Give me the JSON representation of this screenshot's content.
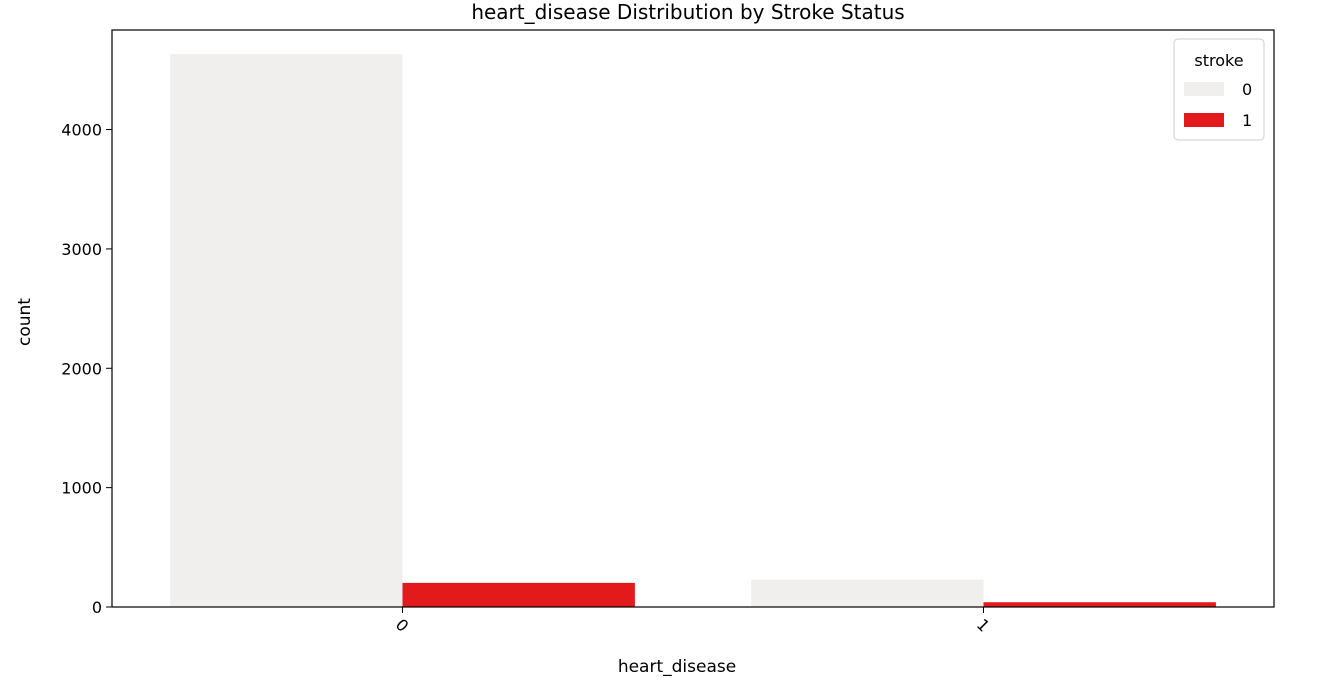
{
  "chart_data": {
    "type": "bar",
    "title": "heart_disease Distribution by Stroke Status",
    "xlabel": "heart_disease",
    "ylabel": "count",
    "categories": [
      "0",
      "1"
    ],
    "series": [
      {
        "name": "0",
        "values": [
          4632,
          229
        ],
        "color": "#f1eeee"
      },
      {
        "name": "1",
        "values": [
          202,
          40
        ],
        "color": "#e31a1c"
      }
    ],
    "ylim": [
      0,
      4834
    ],
    "yticks": [
      0,
      1000,
      2000,
      3000,
      4000
    ],
    "legend": {
      "title": "stroke",
      "placement": "top-right"
    },
    "xtick_rotation_deg": 45,
    "grid": false
  }
}
